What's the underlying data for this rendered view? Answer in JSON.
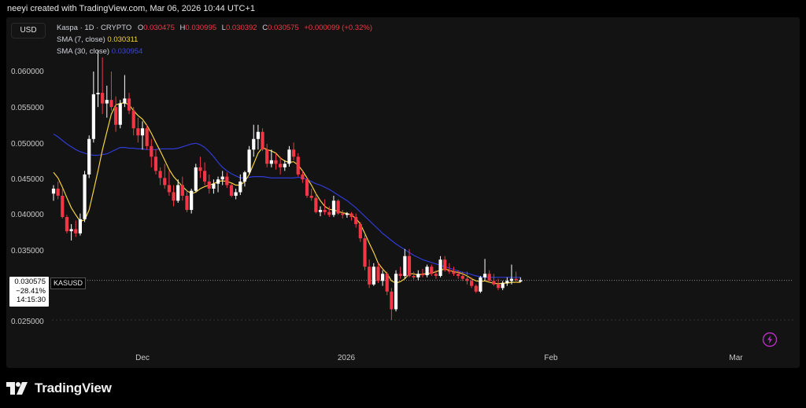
{
  "header": {
    "text": "neeyi created with TradingView.com, Mar 06, 2026 10:44 UTC+1"
  },
  "currency_button": "USD",
  "legend": {
    "title": "Kaspa · 1D · CRYPTO",
    "o_label": "O",
    "o": "0.030475",
    "h_label": "H",
    "h": "0.030995",
    "l_label": "L",
    "l": "0.030392",
    "c_label": "C",
    "c": "0.030575",
    "change": "+0.000099 (+0.32%)",
    "sma7_label": "SMA (7, close)",
    "sma7_value": "0.030311",
    "sma30_label": "SMA (30, close)",
    "sma30_value": "0.030954"
  },
  "price_badge": {
    "price": "0.030575",
    "change": "−28.41%",
    "countdown": "14:15:30",
    "symbol": "KASUSD"
  },
  "footer": {
    "brand": "TradingView"
  },
  "colors": {
    "up": "#ffffff",
    "down": "#f23645",
    "sma7": "#f5d23b",
    "sma30": "#2f3bd4",
    "background": "#131313"
  },
  "icons": [
    "tradingview-logo-icon",
    "lightning-icon"
  ],
  "chart_data": {
    "type": "candlestick",
    "x_ticks": [
      "Dec",
      "2026",
      "Feb",
      "Mar"
    ],
    "y_ticks": [
      "0.060000",
      "0.055000",
      "0.050000",
      "0.045000",
      "0.040000",
      "0.035000",
      "0.025000"
    ],
    "y_tick_values": [
      0.06,
      0.055,
      0.05,
      0.045,
      0.04,
      0.035,
      0.025
    ],
    "ylim": [
      0.0215,
      0.064
    ],
    "x_tick_index": [
      18,
      64,
      108,
      150
    ],
    "last_price": 0.030575,
    "grid": false,
    "candles": [
      [
        0.0428,
        0.044,
        0.0418,
        0.0435
      ],
      [
        0.0435,
        0.0445,
        0.042,
        0.0425
      ],
      [
        0.0425,
        0.0435,
        0.0393,
        0.0395
      ],
      [
        0.0395,
        0.0398,
        0.0372,
        0.0375
      ],
      [
        0.0375,
        0.0385,
        0.0362,
        0.0378
      ],
      [
        0.0378,
        0.039,
        0.0367,
        0.0372
      ],
      [
        0.0372,
        0.04,
        0.0369,
        0.0392
      ],
      [
        0.0392,
        0.046,
        0.0388,
        0.0455
      ],
      [
        0.0455,
        0.051,
        0.045,
        0.0505
      ],
      [
        0.0505,
        0.06,
        0.05,
        0.0568
      ],
      [
        0.0568,
        0.063,
        0.055,
        0.057
      ],
      [
        0.057,
        0.062,
        0.054,
        0.0555
      ],
      [
        0.0555,
        0.058,
        0.0535,
        0.056
      ],
      [
        0.056,
        0.06,
        0.0545,
        0.055
      ],
      [
        0.055,
        0.0565,
        0.0515,
        0.0525
      ],
      [
        0.0525,
        0.056,
        0.052,
        0.0555
      ],
      [
        0.0555,
        0.0595,
        0.055,
        0.0562
      ],
      [
        0.0562,
        0.057,
        0.054,
        0.0545
      ],
      [
        0.0545,
        0.055,
        0.051,
        0.052
      ],
      [
        0.052,
        0.0535,
        0.05,
        0.051
      ],
      [
        0.051,
        0.053,
        0.049,
        0.052
      ],
      [
        0.052,
        0.0525,
        0.049,
        0.0495
      ],
      [
        0.0495,
        0.0505,
        0.0465,
        0.048
      ],
      [
        0.048,
        0.049,
        0.0455,
        0.046
      ],
      [
        0.046,
        0.0465,
        0.044,
        0.045
      ],
      [
        0.045,
        0.047,
        0.0435,
        0.044
      ],
      [
        0.044,
        0.046,
        0.0425,
        0.043
      ],
      [
        0.043,
        0.044,
        0.041,
        0.0418
      ],
      [
        0.0418,
        0.0448,
        0.0415,
        0.044
      ],
      [
        0.044,
        0.0452,
        0.0418,
        0.0425
      ],
      [
        0.0425,
        0.0432,
        0.0402,
        0.0405
      ],
      [
        0.0405,
        0.0435,
        0.04,
        0.0432
      ],
      [
        0.0432,
        0.047,
        0.043,
        0.0465
      ],
      [
        0.0465,
        0.048,
        0.045,
        0.046
      ],
      [
        0.046,
        0.0472,
        0.044,
        0.0445
      ],
      [
        0.0445,
        0.0455,
        0.0428,
        0.0435
      ],
      [
        0.0435,
        0.0448,
        0.0428,
        0.0442
      ],
      [
        0.0442,
        0.0452,
        0.043,
        0.0448
      ],
      [
        0.0448,
        0.046,
        0.044,
        0.0452
      ],
      [
        0.0452,
        0.0458,
        0.0436,
        0.044
      ],
      [
        0.044,
        0.0442,
        0.0423,
        0.0425
      ],
      [
        0.0425,
        0.0435,
        0.042,
        0.043
      ],
      [
        0.043,
        0.0455,
        0.0426,
        0.0445
      ],
      [
        0.0445,
        0.046,
        0.0438,
        0.0458
      ],
      [
        0.0458,
        0.0495,
        0.0455,
        0.049
      ],
      [
        0.049,
        0.0525,
        0.048,
        0.0505
      ],
      [
        0.0505,
        0.0525,
        0.049,
        0.0515
      ],
      [
        0.0515,
        0.052,
        0.0488,
        0.049
      ],
      [
        0.049,
        0.0498,
        0.0465,
        0.047
      ],
      [
        0.047,
        0.049,
        0.0465,
        0.0475
      ],
      [
        0.0475,
        0.0485,
        0.0462,
        0.047
      ],
      [
        0.047,
        0.048,
        0.0455,
        0.0465
      ],
      [
        0.0465,
        0.0475,
        0.046,
        0.047
      ],
      [
        0.047,
        0.0495,
        0.0466,
        0.049
      ],
      [
        0.049,
        0.05,
        0.0475,
        0.048
      ],
      [
        0.048,
        0.0485,
        0.0452,
        0.0455
      ],
      [
        0.0455,
        0.046,
        0.0443,
        0.0448
      ],
      [
        0.0448,
        0.045,
        0.0422,
        0.0425
      ],
      [
        0.0425,
        0.0435,
        0.0418,
        0.0422
      ],
      [
        0.0422,
        0.0428,
        0.04,
        0.0402
      ],
      [
        0.0402,
        0.041,
        0.0396,
        0.0405
      ],
      [
        0.0405,
        0.042,
        0.0398,
        0.0402
      ],
      [
        0.0402,
        0.041,
        0.0395,
        0.0398
      ],
      [
        0.0398,
        0.0425,
        0.0395,
        0.0418
      ],
      [
        0.0418,
        0.042,
        0.0398,
        0.04
      ],
      [
        0.04,
        0.0405,
        0.0393,
        0.0398
      ],
      [
        0.0398,
        0.0402,
        0.0394,
        0.04
      ],
      [
        0.04,
        0.0402,
        0.039,
        0.0395
      ],
      [
        0.0395,
        0.04,
        0.038,
        0.0385
      ],
      [
        0.0385,
        0.0388,
        0.036,
        0.0365
      ],
      [
        0.0365,
        0.037,
        0.032,
        0.0325
      ],
      [
        0.0325,
        0.0335,
        0.0295,
        0.03
      ],
      [
        0.03,
        0.033,
        0.0298,
        0.0325
      ],
      [
        0.0325,
        0.033,
        0.0302,
        0.0305
      ],
      [
        0.0305,
        0.032,
        0.0298,
        0.0315
      ],
      [
        0.0315,
        0.0318,
        0.0285,
        0.029
      ],
      [
        0.029,
        0.0295,
        0.025,
        0.0265
      ],
      [
        0.0265,
        0.032,
        0.0262,
        0.0315
      ],
      [
        0.0315,
        0.0325,
        0.0308,
        0.0312
      ],
      [
        0.0312,
        0.035,
        0.0308,
        0.034
      ],
      [
        0.034,
        0.035,
        0.031,
        0.0312
      ],
      [
        0.0312,
        0.0318,
        0.0307,
        0.031
      ],
      [
        0.031,
        0.032,
        0.0306,
        0.0315
      ],
      [
        0.0315,
        0.0322,
        0.031,
        0.0313
      ],
      [
        0.0313,
        0.0328,
        0.031,
        0.0325
      ],
      [
        0.0325,
        0.0328,
        0.0312,
        0.0315
      ],
      [
        0.0315,
        0.032,
        0.0308,
        0.0312
      ],
      [
        0.0312,
        0.034,
        0.031,
        0.0335
      ],
      [
        0.0335,
        0.034,
        0.0318,
        0.032
      ],
      [
        0.032,
        0.033,
        0.0315,
        0.0318
      ],
      [
        0.0318,
        0.0325,
        0.0312,
        0.0315
      ],
      [
        0.0315,
        0.032,
        0.0308,
        0.0312
      ],
      [
        0.0312,
        0.0318,
        0.0305,
        0.0308
      ],
      [
        0.0308,
        0.0318,
        0.03,
        0.0305
      ],
      [
        0.0305,
        0.031,
        0.0295,
        0.0298
      ],
      [
        0.0298,
        0.03,
        0.0288,
        0.029
      ],
      [
        0.029,
        0.0312,
        0.0288,
        0.031
      ],
      [
        0.031,
        0.0336,
        0.0305,
        0.0315
      ],
      [
        0.0315,
        0.032,
        0.0303,
        0.0305
      ],
      [
        0.0305,
        0.0315,
        0.0298,
        0.03
      ],
      [
        0.03,
        0.0308,
        0.0292,
        0.0295
      ],
      [
        0.0295,
        0.0305,
        0.0292,
        0.0302
      ],
      [
        0.0302,
        0.031,
        0.0298,
        0.0305
      ],
      [
        0.0305,
        0.0328,
        0.03,
        0.0308
      ],
      [
        0.0308,
        0.0318,
        0.0302,
        0.0306
      ],
      [
        0.0304,
        0.031,
        0.0303,
        0.0306
      ]
    ],
    "sma7": [
      0.0458,
      0.045,
      0.0437,
      0.0422,
      0.0408,
      0.0398,
      0.0389,
      0.0391,
      0.0405,
      0.0432,
      0.046,
      0.049,
      0.0515,
      0.054,
      0.0553,
      0.0555,
      0.0556,
      0.0553,
      0.0545,
      0.0538,
      0.0533,
      0.0524,
      0.0513,
      0.05,
      0.0488,
      0.0475,
      0.0462,
      0.0452,
      0.0445,
      0.0438,
      0.0432,
      0.0428,
      0.043,
      0.0435,
      0.0438,
      0.044,
      0.0442,
      0.0445,
      0.0446,
      0.0445,
      0.0443,
      0.044,
      0.044,
      0.0445,
      0.0455,
      0.047,
      0.0485,
      0.0493,
      0.049,
      0.0488,
      0.0485,
      0.0478,
      0.0474,
      0.0472,
      0.0473,
      0.0468,
      0.046,
      0.045,
      0.044,
      0.0428,
      0.0418,
      0.041,
      0.0406,
      0.0405,
      0.0403,
      0.0401,
      0.04,
      0.0398,
      0.0393,
      0.0385,
      0.0372,
      0.0358,
      0.0345,
      0.033,
      0.0322,
      0.0315,
      0.0305,
      0.0302,
      0.0304,
      0.0308,
      0.0315,
      0.0315,
      0.0313,
      0.0315,
      0.0315,
      0.0316,
      0.0318,
      0.032,
      0.0322,
      0.032,
      0.0318,
      0.0317,
      0.0315,
      0.0312,
      0.0308,
      0.0305,
      0.0304,
      0.0305,
      0.0303,
      0.0302,
      0.0301,
      0.0302,
      0.0302,
      0.0303,
      0.0303,
      0.0303
    ],
    "sma30": [
      0.0512,
      0.0508,
      0.0503,
      0.0498,
      0.0494,
      0.049,
      0.0487,
      0.0485,
      0.0483,
      0.0482,
      0.0482,
      0.0483,
      0.0484,
      0.0487,
      0.049,
      0.0493,
      0.0493,
      0.0492,
      0.0492,
      0.0491,
      0.0491,
      0.049,
      0.049,
      0.049,
      0.0491,
      0.0491,
      0.0491,
      0.0491,
      0.0492,
      0.0494,
      0.0496,
      0.0498,
      0.0499,
      0.0497,
      0.0493,
      0.0487,
      0.048,
      0.0472,
      0.0465,
      0.046,
      0.0456,
      0.0453,
      0.045,
      0.045,
      0.0451,
      0.0452,
      0.0452,
      0.0452,
      0.0451,
      0.045,
      0.045,
      0.045,
      0.045,
      0.045,
      0.045,
      0.0451,
      0.045,
      0.0448,
      0.0445,
      0.0442,
      0.044,
      0.0437,
      0.0434,
      0.043,
      0.0426,
      0.0422,
      0.0418,
      0.0413,
      0.0408,
      0.0402,
      0.0396,
      0.039,
      0.0384,
      0.0378,
      0.0372,
      0.0367,
      0.0362,
      0.0357,
      0.0353,
      0.0349,
      0.0345,
      0.0341,
      0.0338,
      0.0335,
      0.0333,
      0.0331,
      0.0329,
      0.0327,
      0.0325,
      0.0323,
      0.0321,
      0.0319,
      0.0317,
      0.0316,
      0.0314,
      0.0312,
      0.0311,
      0.031,
      0.031,
      0.031,
      0.031,
      0.031,
      0.031,
      0.031,
      0.031,
      0.031
    ]
  }
}
